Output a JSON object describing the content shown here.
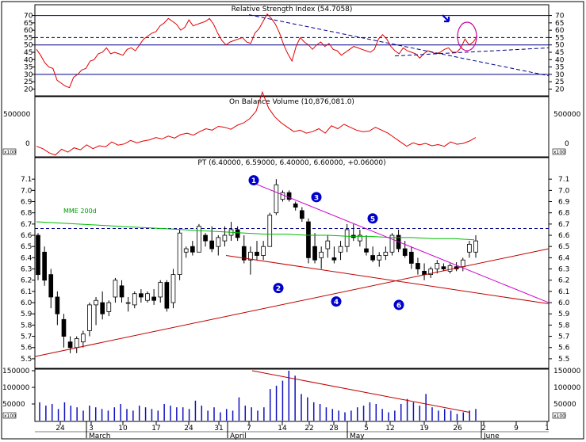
{
  "colors": {
    "rsi": "#e00000",
    "obv": "#e00000",
    "trend_red": "#c00000",
    "trend_magenta": "#cc00cc",
    "ma200": "#00bb00",
    "volume": "#1010c0",
    "ref_line": "#00008b",
    "marker": "#0000cc",
    "circle": "#cc0099",
    "frame": "#000000"
  },
  "chart_data": [
    {
      "type": "line",
      "title": "Relative Strength Index (54.7058)",
      "ylim": [
        17,
        73
      ],
      "yticks": [
        "70",
        "65",
        "60",
        "55",
        "50",
        "45",
        "40",
        "35",
        "30",
        "25",
        "20"
      ],
      "ref_levels": [
        70,
        55,
        50,
        30
      ],
      "series": [
        {
          "values": [
            47,
            43,
            38,
            35,
            34,
            26,
            24,
            22,
            21,
            28,
            30,
            33,
            34,
            39,
            40,
            44,
            45,
            48,
            44,
            45,
            44,
            43,
            47,
            48,
            46,
            50,
            54,
            56,
            58,
            59,
            63,
            65,
            68,
            66,
            64,
            60,
            62,
            67,
            63,
            64,
            65,
            66,
            68,
            64,
            58,
            53,
            50,
            52,
            53,
            54,
            55,
            52,
            51,
            58,
            61,
            66,
            71,
            68,
            64,
            58,
            50,
            44,
            39,
            49,
            55,
            52,
            50,
            47,
            50,
            52,
            49,
            51,
            47,
            46,
            43,
            45,
            47,
            49,
            48,
            47,
            46,
            45,
            47,
            54,
            57,
            54,
            49,
            46,
            44,
            48,
            46,
            45,
            44,
            41,
            44,
            46,
            45,
            44,
            45,
            47,
            48,
            45,
            45,
            48,
            54,
            50,
            52,
            56
          ]
        }
      ],
      "trendlines": "dashed resistance from April peak, dashed support, circled breakout"
    },
    {
      "type": "line",
      "title": "On Balance Volume (10,876,081.0)",
      "yticks": [
        "500000",
        "0"
      ],
      "series": [
        {
          "values": [
            -10,
            -18,
            -32,
            -40,
            -20,
            -30,
            -15,
            -22,
            -5,
            -18,
            -8,
            -12,
            5,
            -6,
            -2,
            10,
            2,
            8,
            12,
            20,
            15,
            25,
            18,
            30,
            35,
            28,
            40,
            50,
            45,
            58,
            55,
            48,
            62,
            70,
            85,
            110,
            175,
            120,
            90,
            70,
            55,
            40,
            45,
            35,
            40,
            50,
            35,
            60,
            50,
            65,
            55,
            45,
            40,
            42,
            55,
            45,
            35,
            20,
            5,
            -10,
            2,
            -5,
            0,
            -8,
            -4,
            -10,
            5,
            -3,
            0,
            8,
            20
          ]
        }
      ]
    },
    {
      "type": "line",
      "title": "PT (6.40000, 6.59000, 6.40000, 6.60000, +0.06000)",
      "ylim": [
        5.45,
        7.2
      ],
      "yticks": [
        "7.1",
        "7.0",
        "6.9",
        "6.8",
        "6.7",
        "6.6",
        "6.5",
        "6.4",
        "6.3",
        "6.2",
        "6.1",
        "6.0",
        "5.9",
        "5.8",
        "5.7",
        "5.6",
        "5.5"
      ],
      "ma_label": "MME 200d",
      "markers": [
        "1",
        "2",
        "3",
        "4",
        "5",
        "6"
      ],
      "xticks": [
        "24",
        "3",
        "10",
        "17",
        "24",
        "31",
        "7",
        "14",
        "22",
        "28",
        "5",
        "12",
        "19",
        "26",
        "2",
        "9"
      ],
      "months": [
        "March",
        "April",
        "May",
        "June"
      ]
    },
    {
      "type": "bar",
      "yticks": [
        "150000",
        "100000",
        "50000"
      ],
      "xticks": [
        "24",
        "3",
        "10",
        "17",
        "24",
        "31",
        "7",
        "14",
        "22",
        "28",
        "5",
        "12",
        "19",
        "26",
        "2",
        "9",
        "1"
      ],
      "months": [
        "March",
        "April",
        "May",
        "June"
      ]
    }
  ]
}
